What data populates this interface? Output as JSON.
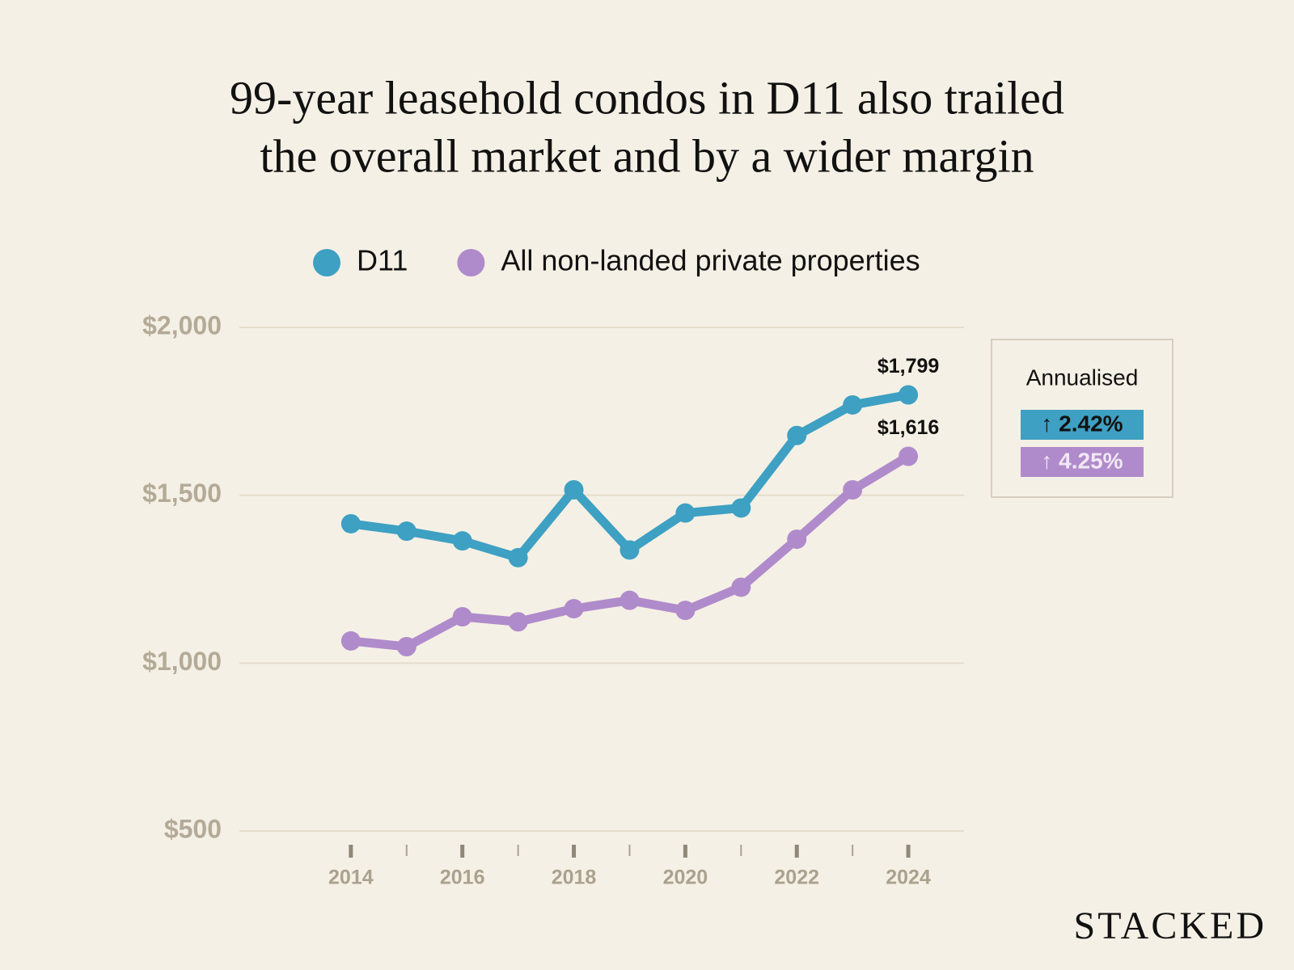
{
  "chart_data": {
    "type": "line",
    "title": [
      "99-year leasehold condos in D11 also trailed",
      "the overall market and by a wider margin"
    ],
    "x": [
      2014,
      2015,
      2016,
      2017,
      2018,
      2019,
      2020,
      2021,
      2022,
      2023,
      2024
    ],
    "xlim": [
      2012,
      2025
    ],
    "xticks": [
      2014,
      2016,
      2018,
      2020,
      2022,
      2024
    ],
    "xminor_ticks": [
      2015,
      2017,
      2019,
      2021,
      2023
    ],
    "ylim": [
      500,
      2000
    ],
    "yticks": [
      {
        "value": 500,
        "label": "$500"
      },
      {
        "value": 1000,
        "label": "$1,000"
      },
      {
        "value": 1500,
        "label": "$1,500"
      },
      {
        "value": 2000,
        "label": "$2,000"
      }
    ],
    "grid": true,
    "legend": "top",
    "series": [
      {
        "name": "D11",
        "color": "#3ea0c2",
        "values": [
          1415,
          1393,
          1364,
          1314,
          1516,
          1337,
          1447,
          1462,
          1678,
          1769,
          1799
        ],
        "value_labels": [
          null,
          null,
          null,
          null,
          null,
          null,
          null,
          null,
          null,
          null,
          "$1,799"
        ]
      },
      {
        "name": "All non-landed private properties",
        "color": "#b08bcb",
        "values": [
          1066,
          1049,
          1138,
          1123,
          1162,
          1187,
          1157,
          1226,
          1369,
          1516,
          1616
        ],
        "value_labels": [
          null,
          null,
          null,
          null,
          null,
          null,
          null,
          null,
          null,
          null,
          "$1,616"
        ]
      }
    ],
    "annotation_box": {
      "heading": "Annualised",
      "items": [
        {
          "text": "↑ 2.42%",
          "color": "#3ea0c2",
          "text_color": "#111111"
        },
        {
          "text": "↑ 4.25%",
          "color": "#b08bcb",
          "text_color": "#f1e8f6"
        }
      ]
    },
    "brand": "STACKED"
  }
}
